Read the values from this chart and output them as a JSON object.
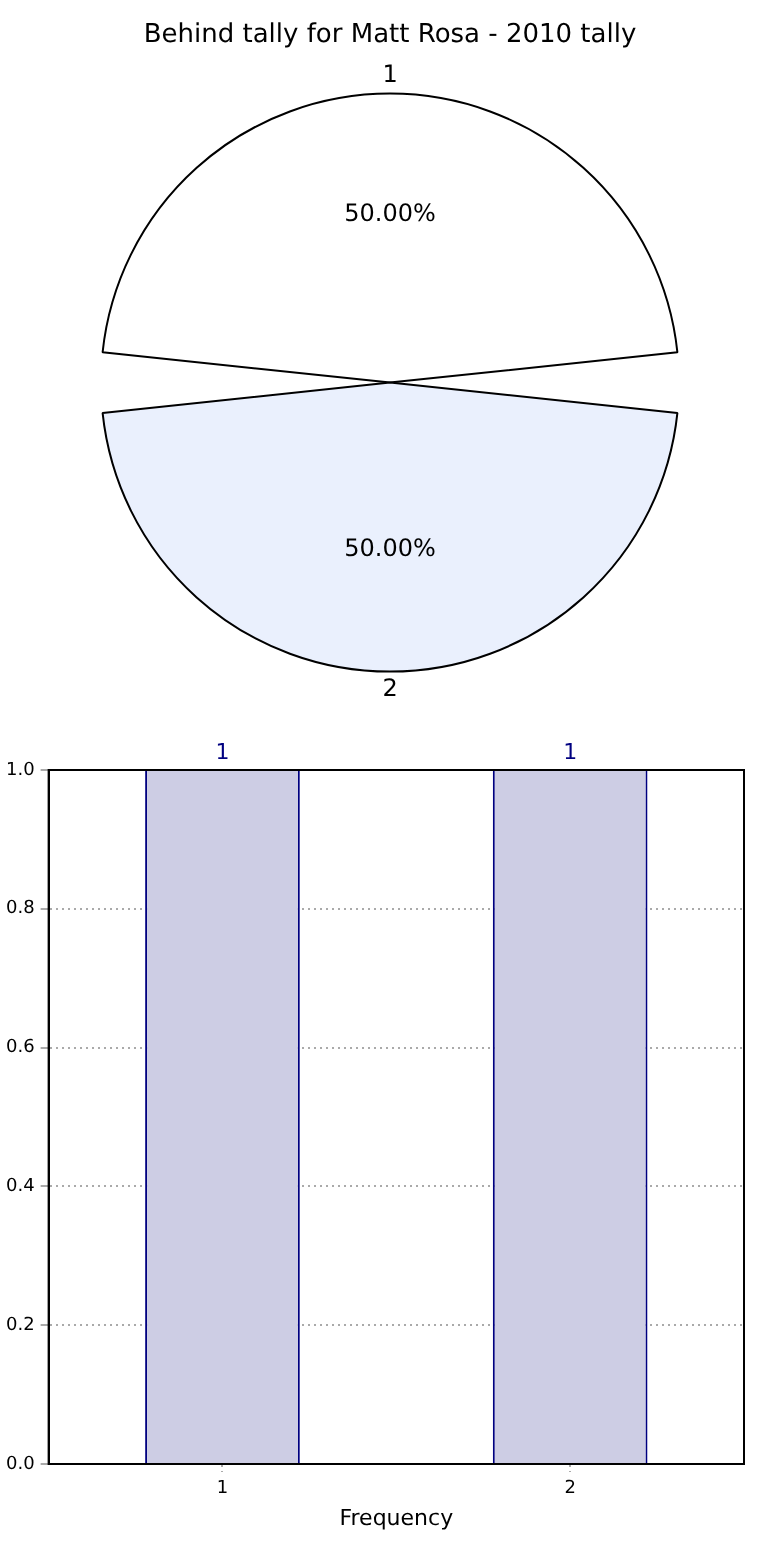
{
  "chart_data": [
    {
      "type": "pie",
      "title": "Behind tally for Matt Rosa - 2010 tally",
      "categories": [
        "1",
        "2"
      ],
      "values": [
        50,
        50
      ],
      "colors": [
        "#ffffff",
        "#eaf0fd"
      ],
      "value_labels": [
        "50.00%",
        "50.00%"
      ]
    },
    {
      "type": "bar",
      "categories": [
        "1",
        "2"
      ],
      "values": [
        1,
        1
      ],
      "color": "#cdcde4",
      "xlabel": "Frequency",
      "ylim": [
        0,
        1
      ],
      "yticks": [
        {
          "value": 0,
          "label": "0.0"
        },
        {
          "value": 0.2,
          "label": "0.2"
        },
        {
          "value": 0.4,
          "label": "0.4"
        },
        {
          "value": 0.6,
          "label": "0.6"
        },
        {
          "value": 0.8,
          "label": "0.8"
        },
        {
          "value": 1,
          "label": "1.0"
        }
      ],
      "grid": true,
      "data_labels": true
    }
  ]
}
